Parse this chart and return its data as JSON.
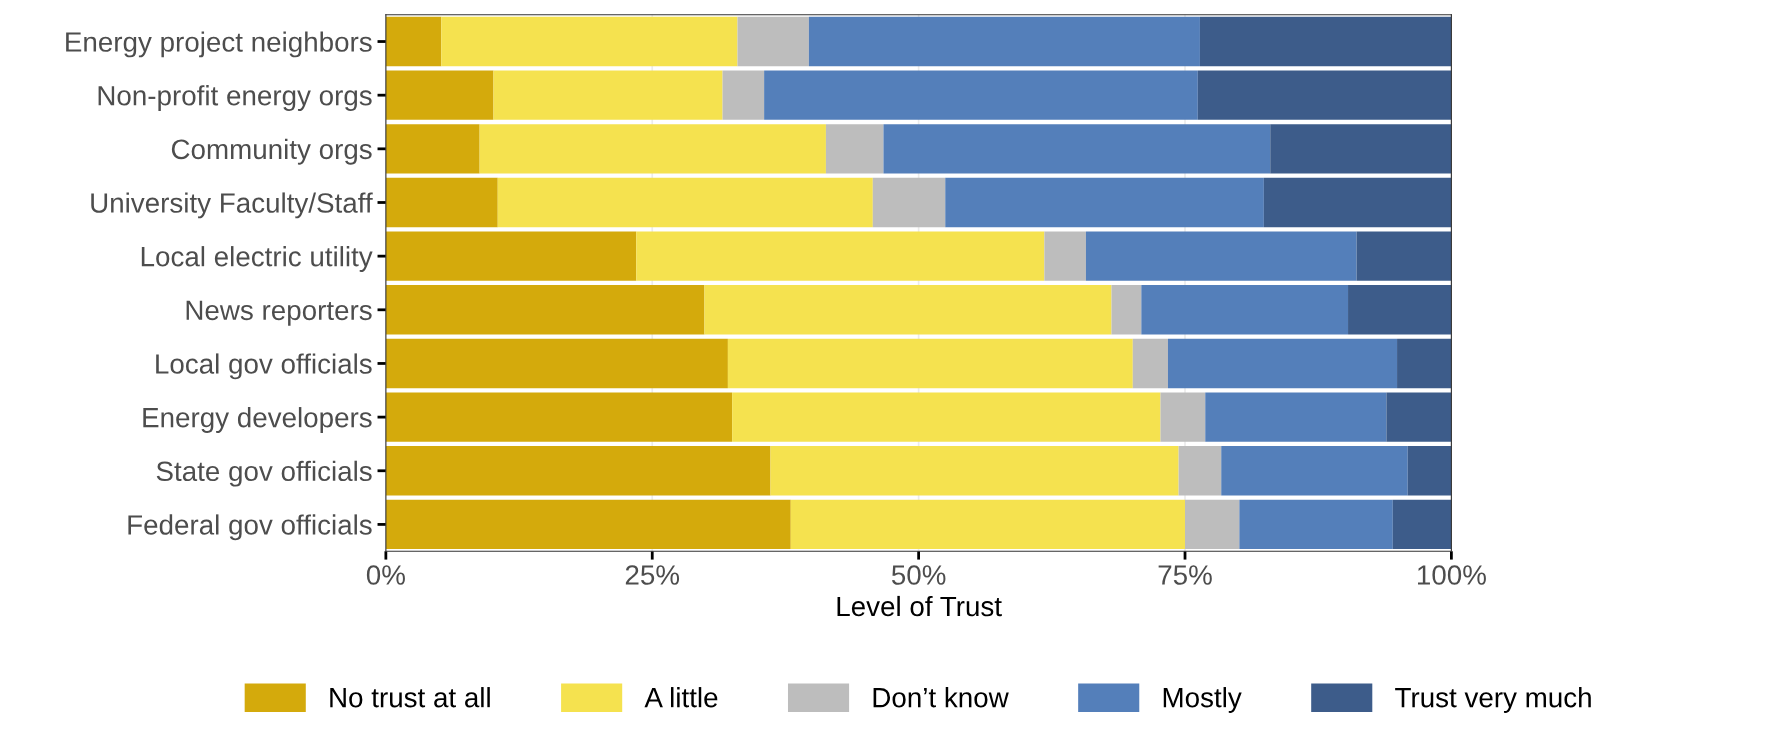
{
  "chart_data": {
    "type": "bar",
    "orientation": "horizontal",
    "stacked": true,
    "xlabel": "Level of Trust",
    "categories": [
      "Energy project neighbors",
      "Non-profit energy orgs",
      "Community orgs",
      "University Faculty/Staff",
      "Local electric utility",
      "News reporters",
      "Local gov officials",
      "Energy developers",
      "State gov officials",
      "Federal gov officials"
    ],
    "series": [
      {
        "name": "No trust at all",
        "color": "#d4aa0c",
        "values": [
          5.2,
          10.1,
          8.8,
          10.5,
          23.5,
          29.9,
          32.1,
          32.5,
          36.1,
          38.0
        ]
      },
      {
        "name": "A little",
        "color": "#f5e24f",
        "values": [
          27.8,
          21.5,
          32.5,
          35.2,
          38.3,
          38.2,
          38.0,
          40.2,
          38.3,
          37.0
        ]
      },
      {
        "name": "Don’t know",
        "color": "#bdbdbd",
        "values": [
          6.7,
          3.9,
          5.4,
          6.8,
          3.9,
          2.8,
          3.3,
          4.2,
          4.0,
          5.1
        ]
      },
      {
        "name": "Mostly",
        "color": "#547fba",
        "values": [
          36.7,
          40.7,
          36.3,
          29.9,
          25.4,
          19.4,
          21.5,
          17.0,
          17.5,
          14.4
        ]
      },
      {
        "name": "Trust very much",
        "color": "#3d5c8a",
        "values": [
          23.6,
          23.8,
          17.0,
          17.6,
          8.9,
          9.7,
          5.1,
          6.1,
          4.1,
          5.5
        ]
      }
    ],
    "xlim": [
      0,
      100
    ],
    "xticks": [
      {
        "value": 0,
        "label": "0%"
      },
      {
        "value": 25,
        "label": "25%"
      },
      {
        "value": 50,
        "label": "50%"
      },
      {
        "value": 75,
        "label": "75%"
      },
      {
        "value": 100,
        "label": "100%"
      }
    ],
    "grid": "x",
    "legend": "bottom"
  }
}
